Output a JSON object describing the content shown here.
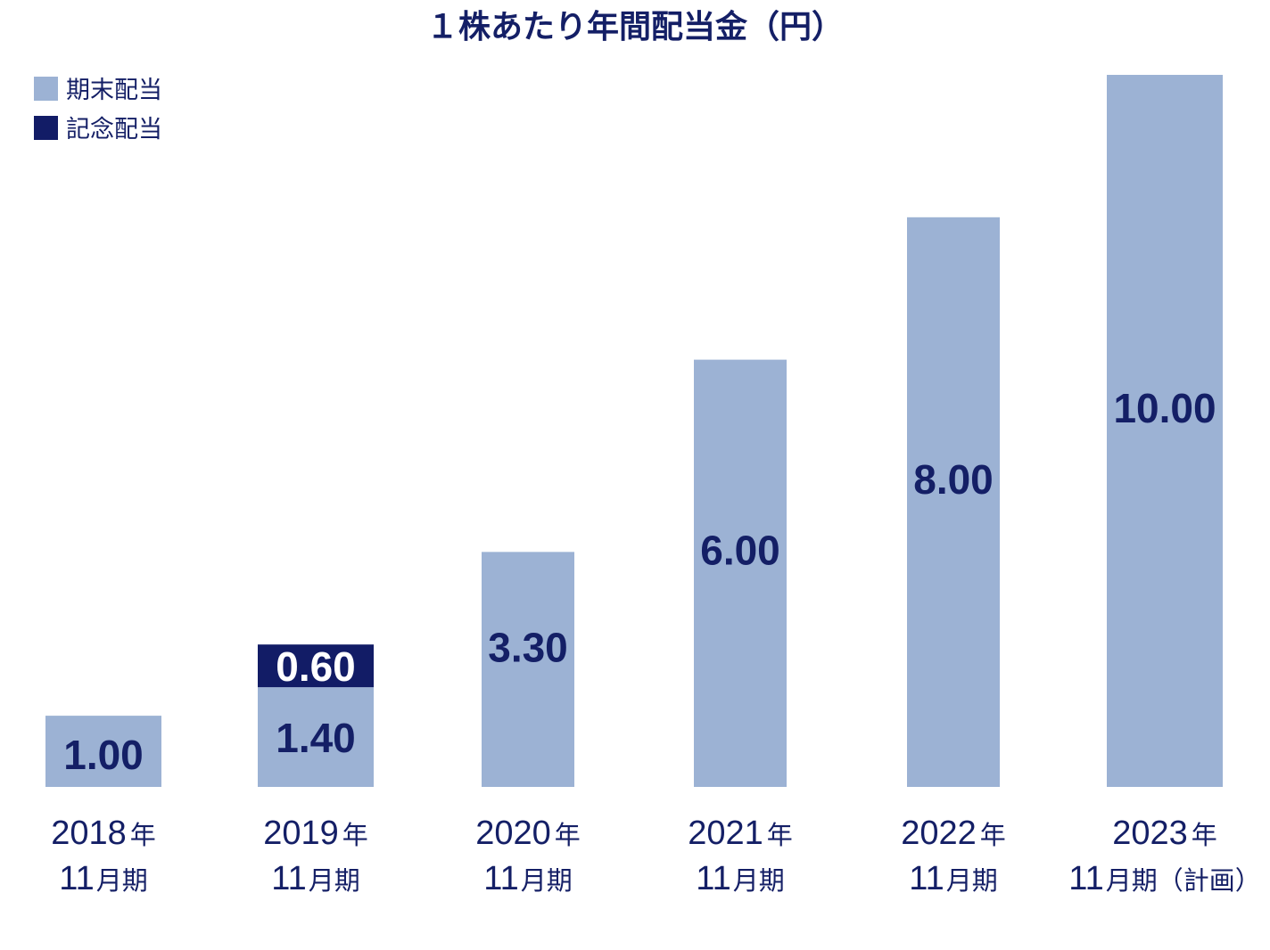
{
  "chart_data": {
    "type": "bar",
    "stacked": true,
    "title": "１株あたり年間配当金（円）",
    "categories": [
      {
        "line1": "2018年",
        "line2": "11月期"
      },
      {
        "line1": "2019年",
        "line2": "11月期"
      },
      {
        "line1": "2020年",
        "line2": "11月期"
      },
      {
        "line1": "2021年",
        "line2": "11月期"
      },
      {
        "line1": "2022年",
        "line2": "11月期"
      },
      {
        "line1": "2023年",
        "line2": "11月期（計画）"
      }
    ],
    "series": [
      {
        "name": "期末配当",
        "color": "#9cb2d4",
        "values": [
          1.0,
          1.4,
          3.3,
          6.0,
          8.0,
          10.0
        ],
        "labels": [
          "1.00",
          "1.40",
          "3.30",
          "6.00",
          "8.00",
          "10.00"
        ]
      },
      {
        "name": "記念配当",
        "color": "#121c66",
        "values": [
          0,
          0.6,
          0,
          0,
          0,
          0
        ],
        "labels": [
          "",
          "0.60",
          "",
          "",
          "",
          ""
        ]
      }
    ],
    "ylim": [
      0,
      10
    ],
    "grid": false,
    "legend_position": "top-left"
  }
}
